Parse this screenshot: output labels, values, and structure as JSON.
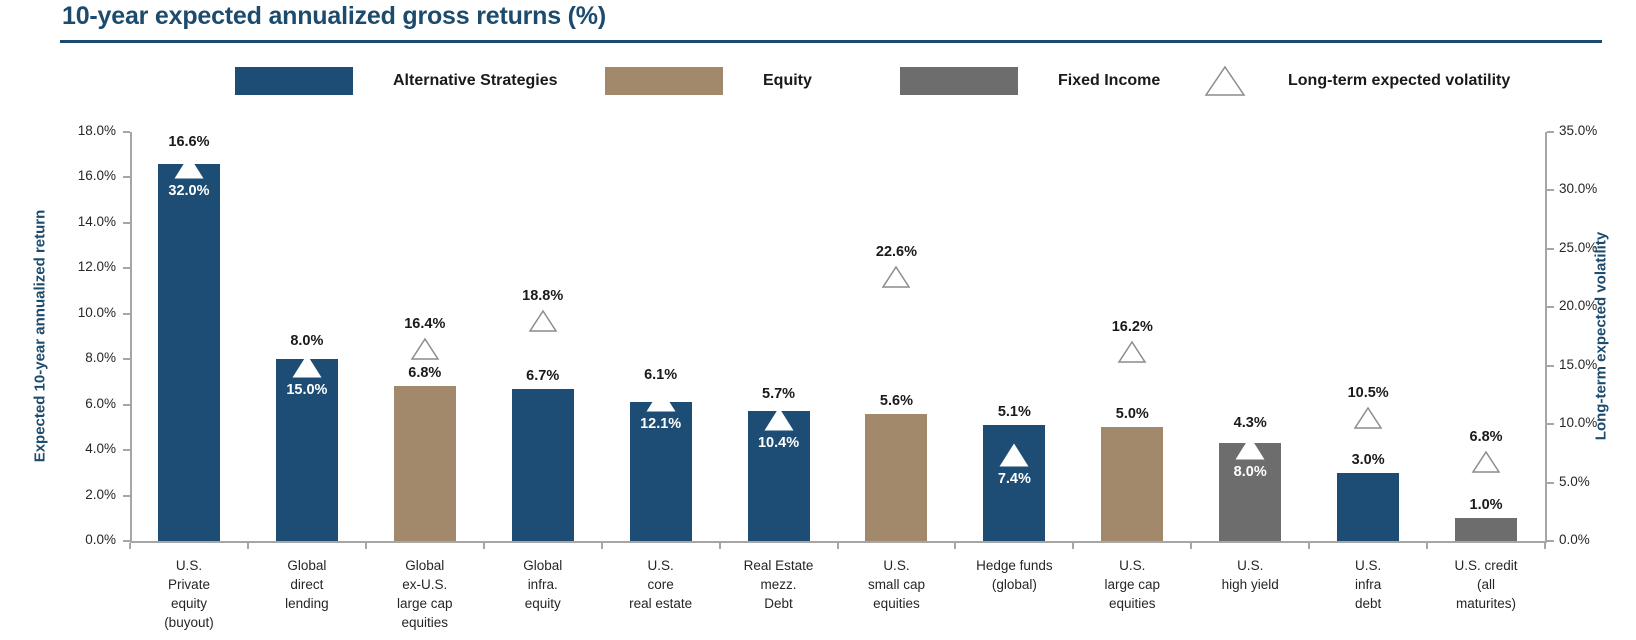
{
  "title": "10-year expected annualized gross returns (%)",
  "colors": {
    "blue": "#1d4d74",
    "tan": "#a3896c",
    "gray": "#6d6d6d",
    "navy": "#1c4b6e",
    "axis": "#a6a6a6",
    "marker_stroke": "#8c8c8c",
    "marker_fill": "#ffffff"
  },
  "legend": [
    {
      "kind": "swatch",
      "color": "blue",
      "label": "Alternative Strategies"
    },
    {
      "kind": "swatch",
      "color": "tan",
      "label": "Equity"
    },
    {
      "kind": "swatch",
      "color": "gray",
      "label": "Fixed Income"
    },
    {
      "kind": "triangle",
      "label": "Long-term expected volatility"
    }
  ],
  "chart_data": {
    "type": "bar",
    "title": "10-year expected annualized gross returns (%)",
    "ylabel_left": "Expected 10-year annualized return",
    "ylabel_right": "Long-term expected volatility",
    "y_left_axis": {
      "min": 0,
      "max": 18,
      "step": 2,
      "tick_labels": [
        "0.0%",
        "2.0%",
        "4.0%",
        "6.0%",
        "8.0%",
        "10.0%",
        "12.0%",
        "14.0%",
        "16.0%",
        "18.0%"
      ]
    },
    "y_right_axis": {
      "min": 0,
      "max": 35,
      "step": 5,
      "tick_labels": [
        "0.0%",
        "5.0%",
        "10.0%",
        "15.0%",
        "20.0%",
        "25.0%",
        "30.0%",
        "35.0%"
      ]
    },
    "grid": false,
    "legend_position": "top",
    "series": [
      {
        "name": "Expected 10-year annualized return",
        "values": [
          16.6,
          8.0,
          6.8,
          6.7,
          6.1,
          5.7,
          5.6,
          5.1,
          5.0,
          4.3,
          3.0,
          1.0
        ]
      },
      {
        "name": "Long-term expected volatility",
        "values": [
          32.0,
          15.0,
          16.4,
          18.8,
          12.1,
          10.4,
          22.6,
          7.4,
          16.2,
          8.0,
          10.5,
          6.8
        ]
      }
    ],
    "categories": [
      {
        "lines": [
          "U.S.",
          "Private",
          "equity",
          "(buyout)"
        ],
        "group": "blue",
        "return_pct": 16.6,
        "return_label": "16.6%",
        "volatility_pct": 32.0,
        "volatility_label": "32.0%"
      },
      {
        "lines": [
          "Global",
          "direct",
          "lending"
        ],
        "group": "blue",
        "return_pct": 8.0,
        "return_label": "8.0%",
        "volatility_pct": 15.0,
        "volatility_label": "15.0%"
      },
      {
        "lines": [
          "Global",
          "ex-U.S.",
          "large cap",
          "equities"
        ],
        "group": "tan",
        "return_pct": 6.8,
        "return_label": "6.8%",
        "volatility_pct": 16.4,
        "volatility_label": "16.4%"
      },
      {
        "lines": [
          "Global",
          "infra.",
          "equity"
        ],
        "group": "blue",
        "return_pct": 6.7,
        "return_label": "6.7%",
        "volatility_pct": 18.8,
        "volatility_label": "18.8%"
      },
      {
        "lines": [
          "U.S.",
          "core",
          "real estate"
        ],
        "group": "blue",
        "return_pct": 6.1,
        "return_label": "6.1%",
        "volatility_pct": 12.1,
        "volatility_label": "12.1%"
      },
      {
        "lines": [
          "Real Estate",
          "mezz.",
          "Debt"
        ],
        "group": "blue",
        "return_pct": 5.7,
        "return_label": "5.7%",
        "volatility_pct": 10.4,
        "volatility_label": "10.4%"
      },
      {
        "lines": [
          "U.S.",
          "small cap",
          "equities"
        ],
        "group": "tan",
        "return_pct": 5.6,
        "return_label": "5.6%",
        "volatility_pct": 22.6,
        "volatility_label": "22.6%"
      },
      {
        "lines": [
          "Hedge funds",
          "(global)"
        ],
        "group": "blue",
        "return_pct": 5.1,
        "return_label": "5.1%",
        "volatility_pct": 7.4,
        "volatility_label": "7.4%"
      },
      {
        "lines": [
          "U.S.",
          "large cap",
          "equities"
        ],
        "group": "tan",
        "return_pct": 5.0,
        "return_label": "5.0%",
        "volatility_pct": 16.2,
        "volatility_label": "16.2%"
      },
      {
        "lines": [
          "U.S.",
          "high yield"
        ],
        "group": "gray",
        "return_pct": 4.3,
        "return_label": "4.3%",
        "volatility_pct": 8.0,
        "volatility_label": "8.0%"
      },
      {
        "lines": [
          "U.S.",
          "infra",
          "debt"
        ],
        "group": "blue",
        "return_pct": 3.0,
        "return_label": "3.0%",
        "volatility_pct": 10.5,
        "volatility_label": "10.5%"
      },
      {
        "lines": [
          "U.S. credit",
          "(all",
          "maturites)"
        ],
        "group": "gray",
        "return_pct": 1.0,
        "return_label": "1.0%",
        "volatility_pct": 6.8,
        "volatility_label": "6.8%"
      }
    ]
  }
}
